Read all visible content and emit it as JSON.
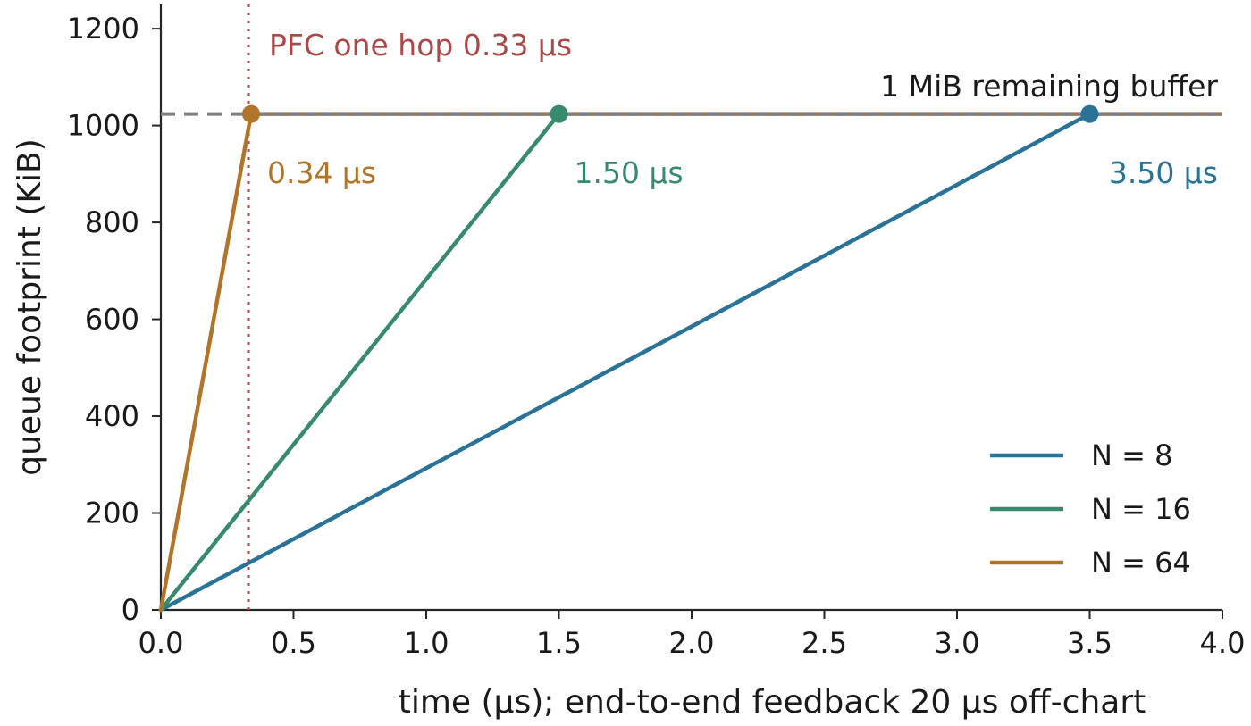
{
  "chart_data": {
    "type": "line",
    "title": "",
    "xlabel": "time (µs); end-to-end feedback 20 µs off-chart",
    "ylabel": "queue footprint (KiB)",
    "xlim": [
      0,
      4.0
    ],
    "ylim": [
      0,
      1250
    ],
    "xticks": [
      {
        "value": 0.0,
        "label": "0.0"
      },
      {
        "value": 0.5,
        "label": "0.5"
      },
      {
        "value": 1.0,
        "label": "1.0"
      },
      {
        "value": 1.5,
        "label": "1.5"
      },
      {
        "value": 2.0,
        "label": "2.0"
      },
      {
        "value": 2.5,
        "label": "2.5"
      },
      {
        "value": 3.0,
        "label": "3.0"
      },
      {
        "value": 3.5,
        "label": "3.5"
      },
      {
        "value": 4.0,
        "label": "4.0"
      }
    ],
    "yticks": [
      {
        "value": 0,
        "label": "0"
      },
      {
        "value": 200,
        "label": "200"
      },
      {
        "value": 400,
        "label": "400"
      },
      {
        "value": 600,
        "label": "600"
      },
      {
        "value": 800,
        "label": "800"
      },
      {
        "value": 1000,
        "label": "1000"
      },
      {
        "value": 1200,
        "label": "1200"
      }
    ],
    "grid": false,
    "legend_position": "lower-right",
    "series": [
      {
        "name": "N = 8",
        "color": "#2a7397",
        "x": [
          0,
          3.5
        ],
        "y": [
          0,
          1024
        ],
        "end_label": "3.50 µs"
      },
      {
        "name": "N = 16",
        "color": "#378a6c",
        "x": [
          0,
          1.5
        ],
        "y": [
          0,
          1024
        ],
        "end_label": "1.50 µs"
      },
      {
        "name": "N = 64",
        "color": "#b0752a",
        "x": [
          0,
          0.34
        ],
        "y": [
          0,
          1024
        ],
        "end_label": "0.34 µs"
      }
    ],
    "reference_lines": [
      {
        "orientation": "horizontal",
        "value": 1024,
        "label": "1 MiB remaining buffer",
        "color": "#808080",
        "style": "solid"
      },
      {
        "orientation": "vertical",
        "value": 0.33,
        "label": "PFC one hop 0.33 µs",
        "color": "#a94a4a",
        "style": "dotted"
      }
    ]
  }
}
